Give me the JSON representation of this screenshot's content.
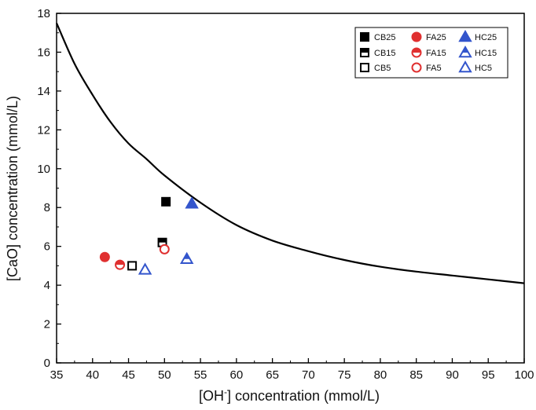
{
  "chart_data": {
    "type": "scatter",
    "title": "",
    "xlabel": {
      "pre": "[OH",
      "sup": "-",
      "post": "] concentration (mmol/L)"
    },
    "ylabel": "[CaO] concentration (mmol/L)",
    "xlim": [
      35,
      100
    ],
    "ylim": [
      0,
      18
    ],
    "xticks": [
      35,
      40,
      45,
      50,
      55,
      60,
      65,
      70,
      75,
      80,
      85,
      90,
      95,
      100
    ],
    "yticks": [
      0,
      2,
      4,
      6,
      8,
      10,
      12,
      14,
      16,
      18
    ],
    "grid": false,
    "legend_position": "top-right",
    "colors": {
      "CB": "#000000",
      "FA": "#e03030",
      "HC": "#3355cc"
    },
    "series": [
      {
        "name": "CB25",
        "marker": "square",
        "fill": "full",
        "color": "#000000",
        "points": [
          [
            50.2,
            8.3
          ]
        ]
      },
      {
        "name": "CB15",
        "marker": "square",
        "fill": "half",
        "color": "#000000",
        "points": [
          [
            49.7,
            6.2
          ]
        ]
      },
      {
        "name": "CB5",
        "marker": "square",
        "fill": "none",
        "color": "#000000",
        "points": [
          [
            45.5,
            5.0
          ]
        ]
      },
      {
        "name": "FA25",
        "marker": "circle",
        "fill": "full",
        "color": "#e03030",
        "points": [
          [
            41.7,
            5.45
          ]
        ]
      },
      {
        "name": "FA15",
        "marker": "circle",
        "fill": "half",
        "color": "#e03030",
        "points": [
          [
            43.8,
            5.05
          ]
        ]
      },
      {
        "name": "FA5",
        "marker": "circle",
        "fill": "none",
        "color": "#e03030",
        "points": [
          [
            50.0,
            5.85
          ]
        ]
      },
      {
        "name": "HC25",
        "marker": "triangle",
        "fill": "full",
        "color": "#3355cc",
        "points": [
          [
            53.8,
            8.2
          ]
        ]
      },
      {
        "name": "HC15",
        "marker": "triangle",
        "fill": "half",
        "color": "#3355cc",
        "points": [
          [
            53.1,
            5.35
          ]
        ]
      },
      {
        "name": "HC5",
        "marker": "triangle",
        "fill": "none",
        "color": "#3355cc",
        "points": [
          [
            47.3,
            4.8
          ]
        ]
      }
    ],
    "curve": {
      "x": [
        35,
        37.5,
        40,
        42.5,
        45,
        47.5,
        50,
        55,
        60,
        65,
        70,
        75,
        80,
        85,
        90,
        95,
        100
      ],
      "y": [
        17.5,
        15.4,
        13.8,
        12.4,
        11.3,
        10.5,
        9.65,
        8.25,
        7.1,
        6.3,
        5.75,
        5.3,
        4.95,
        4.7,
        4.5,
        4.3,
        4.1
      ]
    }
  }
}
